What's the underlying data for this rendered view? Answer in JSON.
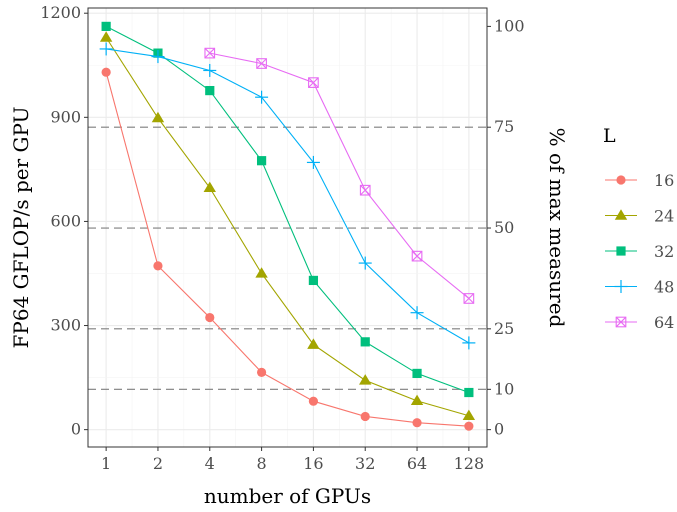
{
  "chart_data": {
    "type": "line",
    "xlabel": "number of GPUs",
    "ylabel": "FP64 GFLOP/s per GPU",
    "y2label": "% of max measured",
    "x": [
      1,
      2,
      4,
      8,
      16,
      32,
      64,
      128
    ],
    "x_tick_labels": [
      "1",
      "2",
      "4",
      "8",
      "16",
      "32",
      "64",
      "128"
    ],
    "x_scale": "log2",
    "ylim": [
      -50,
      1215
    ],
    "y_ticks": [
      0,
      300,
      600,
      900,
      1200
    ],
    "y_tick_labels": [
      "0",
      "300",
      "600",
      "900",
      "1200"
    ],
    "y2_ticks": [
      0,
      10,
      25,
      50,
      75,
      100
    ],
    "y2_tick_labels": [
      "0",
      "10",
      "25",
      "50",
      "75",
      "100"
    ],
    "y2_max_value": 1162,
    "reference_lines_percent": [
      10,
      25,
      50,
      75
    ],
    "grid": true,
    "legend": {
      "title": "L",
      "position": "right"
    },
    "series": [
      {
        "name": "16",
        "color": "#F8766D",
        "marker": "circle",
        "values": [
          1030,
          472,
          323,
          165,
          82,
          38,
          20,
          10
        ]
      },
      {
        "name": "24",
        "color": "#A3A500",
        "marker": "triangle",
        "values": [
          1130,
          898,
          697,
          450,
          245,
          142,
          83,
          40
        ]
      },
      {
        "name": "32",
        "color": "#00BF7D",
        "marker": "square",
        "values": [
          1162,
          1085,
          977,
          775,
          430,
          253,
          162,
          107
        ]
      },
      {
        "name": "48",
        "color": "#00B0F6",
        "marker": "plus",
        "values": [
          1097,
          1075,
          1035,
          958,
          770,
          480,
          337,
          250
        ]
      },
      {
        "name": "64",
        "color": "#E76BF3",
        "marker": "boxcross",
        "values": [
          null,
          null,
          1085,
          1055,
          1000,
          690,
          500,
          378
        ]
      }
    ]
  }
}
